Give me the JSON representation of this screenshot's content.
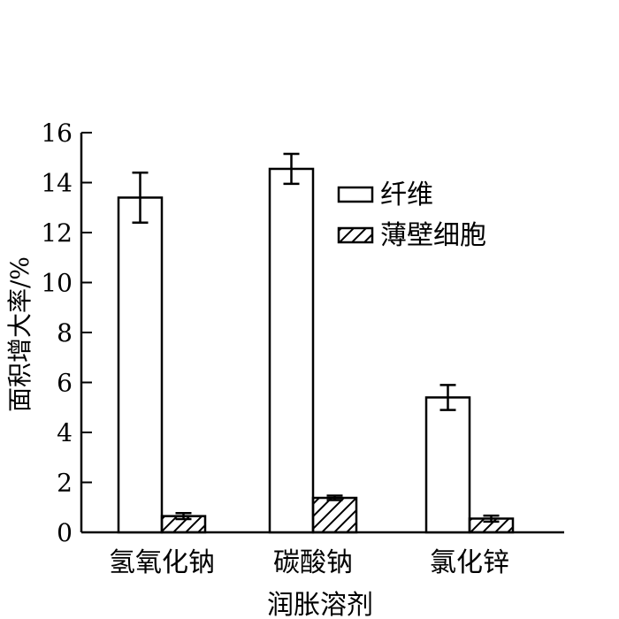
{
  "chart_data": {
    "type": "bar",
    "xlabel": "润胀溶剂",
    "ylabel": "面积增大率/%",
    "ylim": [
      0,
      16
    ],
    "yticks": [
      "0",
      "2",
      "4",
      "6",
      "8",
      "10",
      "12",
      "14",
      "16"
    ],
    "categories": [
      "氢氧化钠",
      "碳酸钠",
      "氯化锌"
    ],
    "series": [
      {
        "name": "纤维",
        "pattern": "none",
        "values": [
          13.4,
          14.55,
          5.4
        ],
        "errors": [
          1.0,
          0.6,
          0.5
        ]
      },
      {
        "name": "薄壁细胞",
        "pattern": "hatch",
        "values": [
          0.65,
          1.38,
          0.55
        ],
        "errors": [
          0.12,
          0.09,
          0.12
        ]
      }
    ],
    "legend": "top-right",
    "grid": false,
    "colors": {
      "bar_fill": "#ffffff",
      "stroke": "#000000"
    }
  }
}
